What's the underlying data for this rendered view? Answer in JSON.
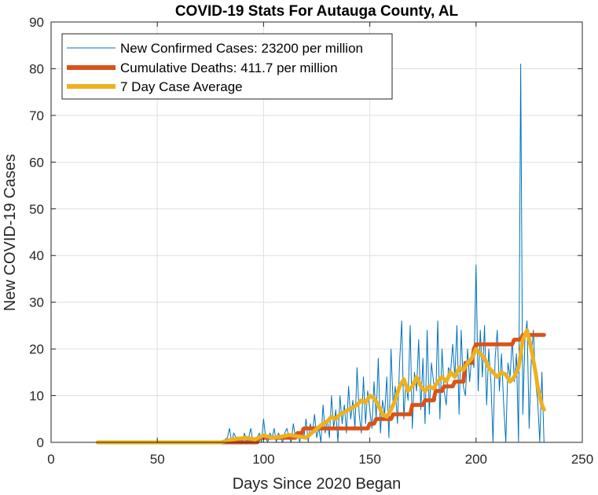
{
  "chart_data": {
    "type": "line",
    "title": "COVID-19 Stats For Autauga County, AL",
    "xlabel": "Days Since 2020 Began",
    "ylabel": "New COVID-19 Cases",
    "xlim": [
      0,
      250
    ],
    "ylim": [
      0,
      90
    ],
    "xticks": [
      0,
      50,
      100,
      150,
      200,
      250
    ],
    "yticks": [
      0,
      10,
      20,
      30,
      40,
      50,
      60,
      70,
      80,
      90
    ],
    "grid": true,
    "legend_position": "top-left",
    "series": [
      {
        "name": "New Confirmed Cases: 23200 per million",
        "color": "#0072BD",
        "style": "thin",
        "x": [
          22,
          40,
          60,
          80,
          83,
          84,
          85,
          86,
          87,
          88,
          89,
          90,
          91,
          92,
          93,
          94,
          95,
          96,
          97,
          98,
          99,
          100,
          101,
          102,
          103,
          104,
          105,
          106,
          107,
          108,
          109,
          110,
          111,
          112,
          113,
          114,
          115,
          116,
          117,
          118,
          119,
          120,
          121,
          122,
          123,
          124,
          125,
          126,
          127,
          128,
          129,
          130,
          131,
          132,
          133,
          134,
          135,
          136,
          137,
          138,
          139,
          140,
          141,
          142,
          143,
          144,
          145,
          146,
          147,
          148,
          149,
          150,
          151,
          152,
          153,
          154,
          155,
          156,
          157,
          158,
          159,
          160,
          161,
          162,
          163,
          164,
          165,
          166,
          167,
          168,
          169,
          170,
          171,
          172,
          173,
          174,
          175,
          176,
          177,
          178,
          179,
          180,
          181,
          182,
          183,
          184,
          185,
          186,
          187,
          188,
          189,
          190,
          191,
          192,
          193,
          194,
          195,
          196,
          197,
          198,
          199,
          200,
          201,
          202,
          203,
          204,
          205,
          206,
          207,
          208,
          209,
          210,
          211,
          212,
          213,
          214,
          215,
          216,
          217,
          218,
          219,
          220,
          221,
          222,
          223,
          224,
          225,
          226,
          227,
          228,
          229,
          230,
          231,
          232
        ],
        "values": [
          0,
          0,
          0,
          0,
          1,
          3,
          0,
          2,
          1,
          0,
          1,
          0,
          2,
          0,
          1,
          3,
          0,
          0,
          1,
          2,
          0,
          5,
          1,
          0,
          2,
          1,
          3,
          0,
          2,
          1,
          0,
          2,
          3,
          1,
          0,
          4,
          1,
          2,
          0,
          3,
          1,
          5,
          0,
          4,
          2,
          6,
          1,
          3,
          0,
          8,
          2,
          5,
          1,
          10,
          3,
          7,
          0,
          10,
          4,
          8,
          2,
          12,
          5,
          9,
          3,
          16,
          6,
          2,
          14,
          4,
          11,
          7,
          3,
          13,
          5,
          18,
          2,
          9,
          6,
          14,
          1,
          20,
          8,
          12,
          4,
          17,
          26,
          5,
          13,
          9,
          25,
          3,
          15,
          11,
          22,
          7,
          18,
          4,
          24,
          6,
          17,
          13,
          9,
          26,
          5,
          20,
          11,
          8,
          16,
          15,
          21,
          14,
          25,
          6,
          24,
          12,
          10,
          20,
          13,
          19,
          16,
          38,
          11,
          24,
          14,
          25,
          8,
          20,
          13,
          0,
          18,
          24,
          11,
          19,
          8,
          0,
          17,
          14,
          22,
          13,
          19,
          0,
          81,
          6,
          22,
          26,
          3,
          18,
          24,
          13,
          9,
          0,
          15,
          0
        ]
      },
      {
        "name": "Cumulative Deaths: 411.7 per million",
        "color": "#D95319",
        "style": "thick",
        "x": [
          22,
          80,
          84,
          95,
          97,
          98,
          100,
          108,
          109,
          115,
          116,
          118,
          119,
          127,
          128,
          149,
          150,
          152,
          153,
          160,
          161,
          169,
          170,
          175,
          176,
          180,
          181,
          184,
          185,
          189,
          190,
          194,
          195,
          198,
          199,
          200,
          201,
          217,
          218,
          219,
          220,
          221,
          222,
          232
        ],
        "values": [
          0,
          0,
          0,
          0,
          0,
          1,
          1,
          1,
          1,
          1,
          2,
          2,
          3,
          3,
          3,
          3,
          4,
          4,
          5,
          5,
          6,
          6,
          8,
          8,
          9,
          9,
          11,
          11,
          12,
          12,
          13,
          13,
          17,
          17,
          20,
          21,
          21,
          21,
          22,
          22,
          22,
          22,
          23,
          23
        ]
      },
      {
        "name": "7 Day Case Average",
        "color": "#EDB120",
        "style": "thick",
        "x": [
          22,
          40,
          60,
          80,
          84,
          88,
          92,
          96,
          100,
          104,
          108,
          112,
          116,
          120,
          124,
          128,
          130,
          132,
          134,
          136,
          138,
          140,
          142,
          144,
          146,
          148,
          150,
          152,
          154,
          156,
          158,
          160,
          162,
          164,
          166,
          168,
          170,
          172,
          174,
          176,
          178,
          180,
          182,
          184,
          186,
          188,
          190,
          192,
          194,
          196,
          198,
          200,
          202,
          204,
          206,
          208,
          210,
          212,
          214,
          216,
          218,
          220,
          222,
          224,
          226,
          228,
          229,
          230,
          231,
          232
        ],
        "values": [
          0,
          0,
          0,
          0,
          0.5,
          0.8,
          1,
          0.6,
          1.5,
          1,
          1.2,
          1.6,
          1.3,
          1,
          2.5,
          4,
          4.5,
          5.5,
          5,
          6,
          6.5,
          7,
          7.5,
          8,
          9,
          8.5,
          10,
          9.5,
          8,
          6,
          5.5,
          7,
          9,
          12,
          13.5,
          11,
          12,
          14,
          12,
          11,
          12,
          11.5,
          13,
          14,
          13,
          15,
          14,
          16,
          15.5,
          17,
          18,
          20,
          19,
          18,
          16,
          15,
          14,
          15,
          14.5,
          13,
          14,
          16,
          22,
          24,
          20,
          15,
          12,
          10,
          8,
          7
        ]
      }
    ]
  }
}
